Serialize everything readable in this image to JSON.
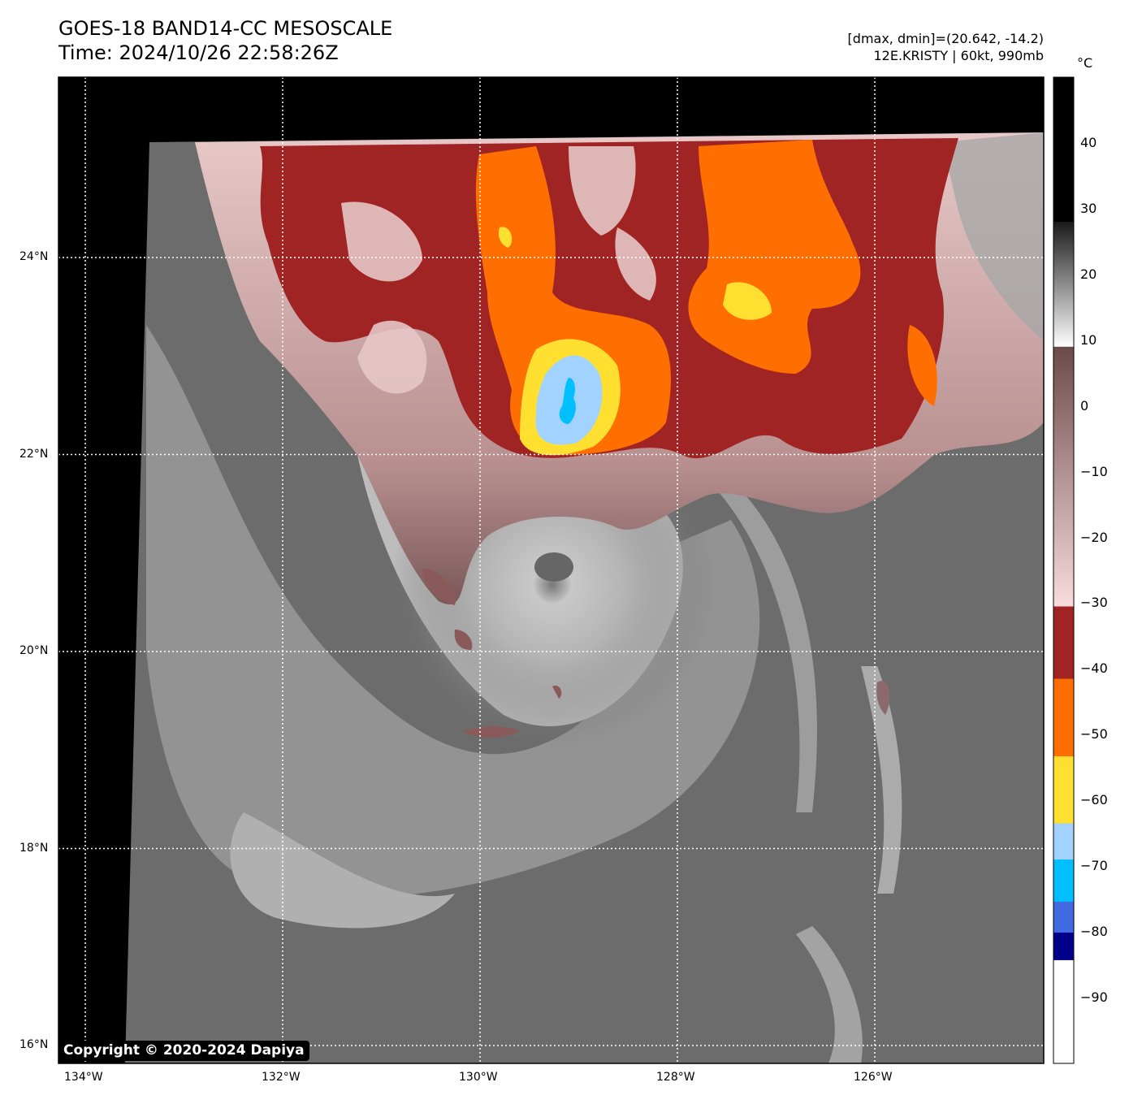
{
  "header": {
    "title": "GOES-18 BAND14-CC MESOSCALE",
    "time": "Time: 2024/10/26 22:58:26Z",
    "range": "[dmax, dmin]=(20.642, -14.2)",
    "storm": "12E.KRISTY | 60kt, 990mb"
  },
  "map": {
    "lon_ticks": [
      {
        "value": 134,
        "label": "134°W"
      },
      {
        "value": 132,
        "label": "132°W"
      },
      {
        "value": 130,
        "label": "130°W"
      },
      {
        "value": 128,
        "label": "128°W"
      },
      {
        "value": 126,
        "label": "126°W"
      }
    ],
    "lat_ticks": [
      {
        "value": 24,
        "label": "24°N"
      },
      {
        "value": 22,
        "label": "22°N"
      },
      {
        "value": 20,
        "label": "20°N"
      },
      {
        "value": 18,
        "label": "18°N"
      },
      {
        "value": 16,
        "label": "16°N"
      }
    ],
    "copyright": "Copyright © 2020-2024 Dapiya"
  },
  "colorbar": {
    "unit": "°C",
    "range": [
      -100,
      50
    ],
    "ticks": [
      {
        "value": 40,
        "label": "40"
      },
      {
        "value": 30,
        "label": "30"
      },
      {
        "value": 20,
        "label": "20"
      },
      {
        "value": 10,
        "label": "10"
      },
      {
        "value": 0,
        "label": "0"
      },
      {
        "value": -10,
        "label": "−10"
      },
      {
        "value": -20,
        "label": "−20"
      },
      {
        "value": -30,
        "label": "−30"
      },
      {
        "value": -40,
        "label": "−40"
      },
      {
        "value": -50,
        "label": "−50"
      },
      {
        "value": -60,
        "label": "−60"
      },
      {
        "value": -70,
        "label": "−70"
      },
      {
        "value": -80,
        "label": "−80"
      },
      {
        "value": -90,
        "label": "−90"
      }
    ],
    "segments": [
      {
        "from": 28,
        "to": 50,
        "top": "#000000",
        "bottom": "#000000"
      },
      {
        "from": 9,
        "to": 28,
        "top": "#1a1a1a",
        "bottom": "#ffffff"
      },
      {
        "from": -30.5,
        "to": 9,
        "top": "#6b4a4a",
        "bottom": "#fadcdc"
      },
      {
        "from": -41.5,
        "to": -30.5,
        "top": "#a02424",
        "bottom": "#a02424"
      },
      {
        "from": -53.3,
        "to": -41.5,
        "top": "#ff6e00",
        "bottom": "#ff6e00"
      },
      {
        "from": -63.5,
        "to": -53.3,
        "top": "#ffe030",
        "bottom": "#ffe030"
      },
      {
        "from": -69,
        "to": -63.5,
        "top": "#a2d2ff",
        "bottom": "#a2d2ff"
      },
      {
        "from": -75.4,
        "to": -69,
        "top": "#00bfff",
        "bottom": "#00bfff"
      },
      {
        "from": -80.1,
        "to": -75.4,
        "top": "#4169e1",
        "bottom": "#4169e1"
      },
      {
        "from": -84.3,
        "to": -80.1,
        "top": "#00008b",
        "bottom": "#00008b"
      },
      {
        "from": -100,
        "to": -84.3,
        "top": "#ffffff",
        "bottom": "#ffffff"
      }
    ]
  }
}
